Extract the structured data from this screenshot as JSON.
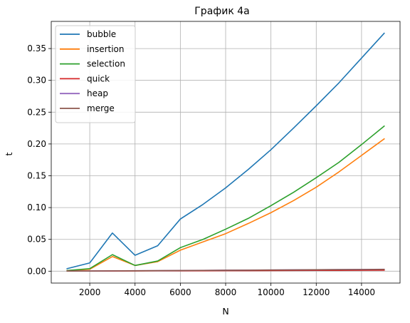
{
  "chart_data": {
    "type": "line",
    "title": "График 4a",
    "xlabel": "N",
    "ylabel": "t",
    "xlim": [
      300,
      15700
    ],
    "ylim": [
      -0.0187,
      0.3927
    ],
    "xticks": [
      2000,
      4000,
      6000,
      8000,
      10000,
      12000,
      14000
    ],
    "yticks": [
      0.0,
      0.05,
      0.1,
      0.15,
      0.2,
      0.25,
      0.3,
      0.35
    ],
    "ytick_labels": [
      "0.00",
      "0.05",
      "0.10",
      "0.15",
      "0.20",
      "0.25",
      "0.30",
      "0.35"
    ],
    "grid": true,
    "legend_position": "top-left",
    "x": [
      1000,
      2000,
      3000,
      4000,
      5000,
      6000,
      7000,
      8000,
      9000,
      10000,
      11000,
      12000,
      13000,
      14000,
      15000
    ],
    "series": [
      {
        "name": "bubble",
        "color": "#1f77b4",
        "values": [
          0.004,
          0.013,
          0.06,
          0.025,
          0.04,
          0.082,
          0.105,
          0.131,
          0.16,
          0.191,
          0.225,
          0.26,
          0.296,
          0.335,
          0.374
        ]
      },
      {
        "name": "insertion",
        "color": "#ff7f0e",
        "values": [
          0.001,
          0.003,
          0.023,
          0.009,
          0.015,
          0.033,
          0.046,
          0.059,
          0.075,
          0.092,
          0.111,
          0.132,
          0.156,
          0.182,
          0.208
        ]
      },
      {
        "name": "selection",
        "color": "#2ca02c",
        "values": [
          0.001,
          0.004,
          0.026,
          0.009,
          0.016,
          0.037,
          0.05,
          0.066,
          0.083,
          0.103,
          0.124,
          0.147,
          0.171,
          0.199,
          0.228
        ]
      },
      {
        "name": "quick",
        "color": "#d62728",
        "values": [
          0.0001,
          0.0002,
          0.0003,
          0.0004,
          0.0005,
          0.0006,
          0.0007,
          0.0008,
          0.0009,
          0.001,
          0.0011,
          0.0012,
          0.0013,
          0.0014,
          0.0015
        ]
      },
      {
        "name": "heap",
        "color": "#9467bd",
        "values": [
          0.0001,
          0.0003,
          0.0005,
          0.0007,
          0.0009,
          0.0011,
          0.0013,
          0.0015,
          0.0017,
          0.0019,
          0.0021,
          0.0023,
          0.0025,
          0.0027,
          0.0029
        ]
      },
      {
        "name": "merge",
        "color": "#8c564b",
        "values": [
          0.0001,
          0.0003,
          0.0005,
          0.0006,
          0.0008,
          0.001,
          0.0012,
          0.0014,
          0.0016,
          0.0018,
          0.002,
          0.0022,
          0.0024,
          0.0026,
          0.0028
        ]
      }
    ]
  }
}
